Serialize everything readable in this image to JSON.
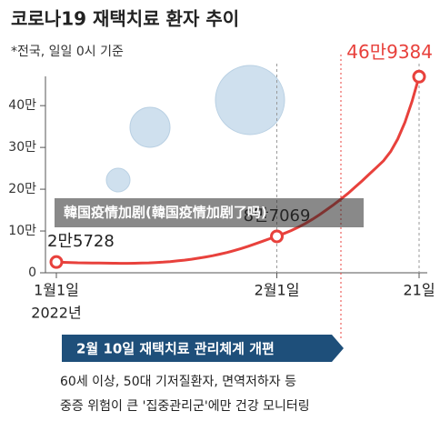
{
  "chart_data": {
    "type": "line",
    "title": "코로나19 재택치료 환자 추이",
    "subtitle": "*전국, 일일 0시 기준",
    "categories": [
      "1월1일",
      null,
      null,
      null,
      null,
      null,
      null,
      null,
      null,
      null,
      null,
      null,
      null,
      null,
      null,
      null,
      null,
      null,
      null,
      null,
      null,
      null,
      null,
      null,
      null,
      null,
      null,
      null,
      null,
      null,
      null,
      "2월1일",
      null,
      null,
      null,
      null,
      null,
      null,
      null,
      null,
      null,
      null,
      null,
      null,
      null,
      null,
      null,
      null,
      null,
      null,
      null,
      "21일"
    ],
    "year_label": "2022년",
    "series": [
      {
        "name": "재택치료 환자",
        "color": "#e8413c",
        "values": [
          25728,
          25000,
          24500,
          24000,
          23800,
          23500,
          23300,
          23000,
          22800,
          22700,
          22600,
          22800,
          23200,
          23800,
          24500,
          25500,
          26800,
          28400,
          30300,
          32500,
          35000,
          37800,
          41000,
          44500,
          48500,
          53000,
          58000,
          63500,
          69500,
          75500,
          81500,
          87069,
          94000,
          101000,
          109000,
          118000,
          128000,
          139000,
          151000,
          163000,
          176000,
          190000,
          205000,
          220000,
          236000,
          252000,
          268000,
          290000,
          320000,
          360000,
          410000,
          469384
        ],
        "value_labels": [
          "2만5728",
          null,
          null,
          null,
          null,
          null,
          null,
          null,
          null,
          null,
          null,
          null,
          null,
          null,
          null,
          null,
          null,
          null,
          null,
          null,
          null,
          null,
          null,
          null,
          null,
          null,
          null,
          null,
          null,
          null,
          null,
          "8만7069",
          null,
          null,
          null,
          null,
          null,
          null,
          null,
          null,
          null,
          null,
          null,
          null,
          null,
          null,
          null,
          null,
          null,
          null,
          null,
          "46만9384"
        ]
      }
    ],
    "ylim": [
      0,
      470000
    ],
    "yticks": [
      0,
      {
        "value": 100000,
        "label": "10만"
      },
      {
        "value": 200000,
        "label": "20만"
      },
      {
        "value": 300000,
        "label": "30만"
      },
      {
        "value": 400000,
        "label": "40만"
      }
    ],
    "annotation": {
      "title": "2월 10일 재택치료 관리체계 개편",
      "lines": [
        "60세 이상, 50대 기저질환자, 면역저하자 등",
        "중증 위험이 큰 '집중관리군'에만 건강 모니터링"
      ]
    },
    "overlay_caption": "韓国疫情加剧(韓国疫情加剧了吗)"
  }
}
